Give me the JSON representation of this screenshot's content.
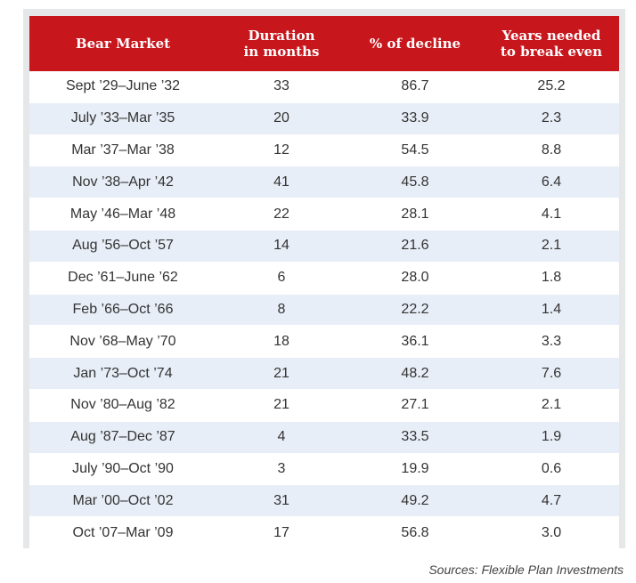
{
  "chart_data": {
    "type": "table",
    "columns": [
      "Bear Market",
      "Duration in months",
      "% of decline",
      "Years needed to break even"
    ],
    "header_lines": [
      [
        "Bear Market"
      ],
      [
        "Duration",
        "in months"
      ],
      [
        "% of decline"
      ],
      [
        "Years needed",
        "to break even"
      ]
    ],
    "rows": [
      [
        "Sept ’29–June ’32",
        "33",
        "86.7",
        "25.2"
      ],
      [
        "July ’33–Mar ’35",
        "20",
        "33.9",
        "2.3"
      ],
      [
        "Mar ’37–Mar ’38",
        "12",
        "54.5",
        "8.8"
      ],
      [
        "Nov ’38–Apr ’42",
        "41",
        "45.8",
        "6.4"
      ],
      [
        "May ’46–Mar ’48",
        "22",
        "28.1",
        "4.1"
      ],
      [
        "Aug ’56–Oct ’57",
        "14",
        "21.6",
        "2.1"
      ],
      [
        "Dec ’61–June ’62",
        "6",
        "28.0",
        "1.8"
      ],
      [
        "Feb ’66–Oct ’66",
        "8",
        "22.2",
        "1.4"
      ],
      [
        "Nov ’68–May ’70",
        "18",
        "36.1",
        "3.3"
      ],
      [
        "Jan ’73–Oct ’74",
        "21",
        "48.2",
        "7.6"
      ],
      [
        "Nov ’80–Aug ’82",
        "21",
        "27.1",
        "2.1"
      ],
      [
        "Aug ’87–Dec ’87",
        "4",
        "33.5",
        "1.9"
      ],
      [
        "July ’90–Oct ’90",
        "3",
        "19.9",
        "0.6"
      ],
      [
        "Mar ’00–Oct ’02",
        "31",
        "49.2",
        "4.7"
      ],
      [
        "Oct ’07–Mar ’09",
        "17",
        "56.8",
        "3.0"
      ]
    ],
    "source": "Sources: Flexible Plan Investments",
    "colors": {
      "header_bg": "#c8161d",
      "header_text": "#ffffff",
      "row_alt_bg": "#e8eef7",
      "row_bg": "#ffffff",
      "frame_bg": "#e6e7e8"
    }
  }
}
